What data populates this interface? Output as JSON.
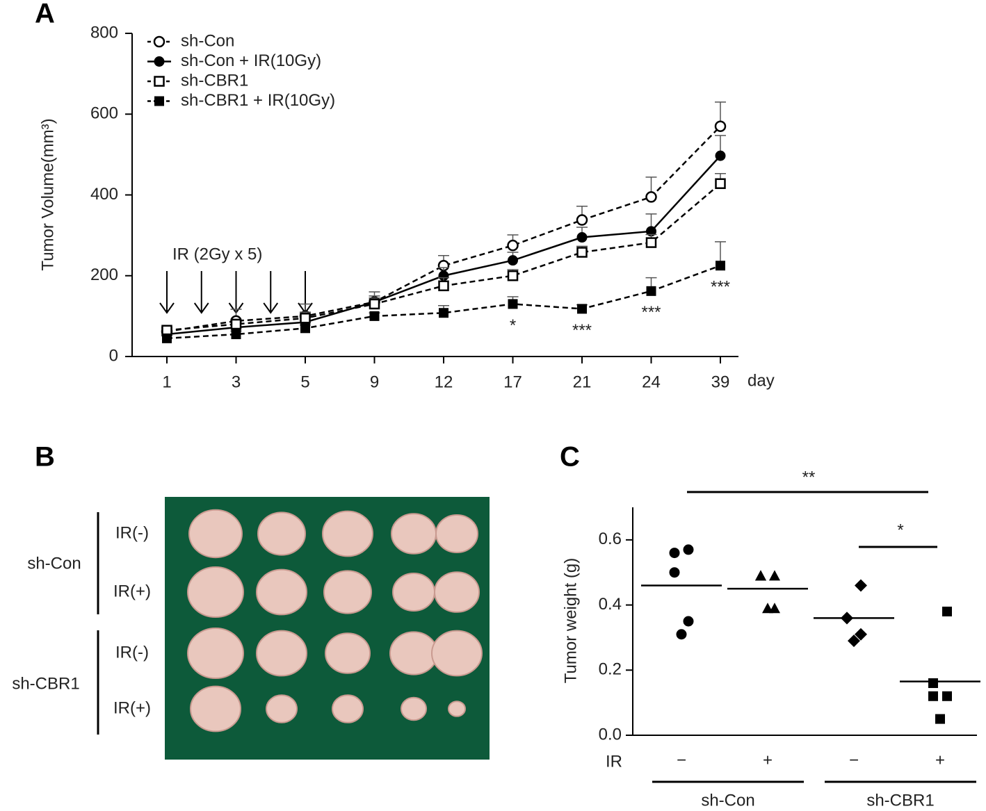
{
  "chart_data": [
    {
      "type": "line",
      "panel": "A",
      "ylabel": "Tumor Volume(mm³)",
      "xlabel": "day",
      "annotation": "IR (2Gy x 5)",
      "categories": [
        "1",
        "3",
        "5",
        "9",
        "12",
        "17",
        "21",
        "24",
        "39"
      ],
      "ylim": [
        0,
        800
      ],
      "yticks": [
        0,
        200,
        400,
        600,
        800
      ],
      "legend": "top-left",
      "series": [
        {
          "name": "sh-Con",
          "color": "#000000",
          "marker": "open-circle",
          "dashed": true,
          "values": [
            62,
            88,
            100,
            135,
            225,
            275,
            338,
            395,
            570
          ],
          "errors": [
            8,
            29,
            30,
            25,
            25,
            26,
            34,
            49,
            60
          ]
        },
        {
          "name": "sh-Con + IR(10Gy)",
          "color": "#000000",
          "marker": "filled-circle",
          "dashed": false,
          "values": [
            55,
            72,
            85,
            135,
            200,
            238,
            295,
            310,
            497
          ],
          "errors": [
            8,
            15,
            15,
            15,
            20,
            20,
            25,
            43,
            50
          ]
        },
        {
          "name": "sh-CBR1",
          "color": "#000000",
          "marker": "open-square",
          "dashed": true,
          "values": [
            65,
            80,
            95,
            130,
            175,
            200,
            258,
            282,
            428
          ],
          "errors": [
            8,
            12,
            15,
            15,
            20,
            15,
            15,
            20,
            25
          ]
        },
        {
          "name": "sh-CBR1 + IR(10Gy)",
          "color": "#000000",
          "marker": "filled-square",
          "dashed": true,
          "values": [
            45,
            55,
            70,
            100,
            108,
            130,
            118,
            162,
            225
          ],
          "errors": [
            6,
            8,
            8,
            8,
            18,
            18,
            10,
            33,
            59
          ],
          "significance": [
            null,
            null,
            null,
            null,
            null,
            "*",
            "***",
            "***",
            "***"
          ]
        }
      ]
    },
    {
      "type": "strip",
      "panel": "C",
      "ylabel": "Tumor weight (g)",
      "row_label": "IR",
      "categories": [
        "−",
        "+",
        "−",
        "+"
      ],
      "groups": [
        "sh-Con",
        "sh-CBR1"
      ],
      "markers": [
        "circle",
        "triangle",
        "diamond",
        "square"
      ],
      "color": "#000000",
      "ylim": [
        0,
        0.7
      ],
      "yticks": [
        {
          "value": 0,
          "label": "0.0"
        },
        0.2,
        0.4,
        0.6
      ],
      "values": [
        [
          0.57,
          0.56,
          0.5,
          0.35,
          0.31
        ],
        [
          0.49,
          0.49,
          0.49,
          0.39,
          0.39
        ],
        [
          0.46,
          0.36,
          0.36,
          0.31,
          0.29
        ],
        [
          0.38,
          0.16,
          0.12,
          0.12,
          0.05
        ]
      ],
      "means": [
        0.46,
        0.45,
        0.36,
        0.165
      ],
      "significance": [
        "**",
        "*"
      ]
    }
  ],
  "panel_b": {
    "panel": "B",
    "groups": [
      {
        "name": "sh-Con",
        "rows": [
          "IR(-)",
          "IR(+)"
        ]
      },
      {
        "name": "sh-CBR1",
        "rows": [
          "IR(-)",
          "IR(+)"
        ]
      }
    ]
  }
}
